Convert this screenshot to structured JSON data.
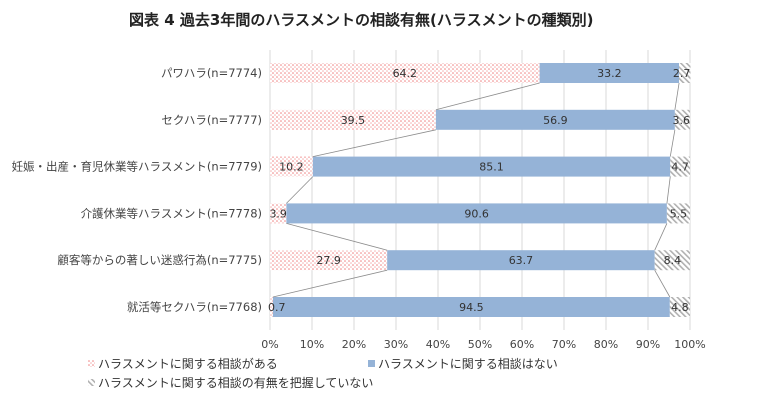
{
  "chart_data": {
    "type": "bar",
    "orientation": "horizontal",
    "stacked": "100%",
    "title": "図表 4  過去3年間のハラスメントの相談有無(ハラスメントの種類別)",
    "categories": [
      "パワハラ(n=7774)",
      "セクハラ(n=7777)",
      "妊娠・出産・育児休業等ハラスメント(n=7779)",
      "介護休業等ハラスメント(n=7778)",
      "顧客等からの著しい迷惑行為(n=7775)",
      "就活等セクハラ(n=7768)"
    ],
    "series": [
      {
        "name": "ハラスメントに関する相談がある",
        "values": [
          64.2,
          39.5,
          10.2,
          3.9,
          27.9,
          0.7
        ],
        "color": "#f4a6a6",
        "pattern": "dots"
      },
      {
        "name": "ハラスメントに関する相談はない",
        "values": [
          33.2,
          56.9,
          85.1,
          90.6,
          63.7,
          94.5
        ],
        "color": "#95b3d7",
        "pattern": "solid"
      },
      {
        "name": "ハラスメントに関する相談の有無を把握していない",
        "values": [
          2.7,
          3.6,
          4.7,
          5.5,
          8.4,
          4.8
        ],
        "color": "#bfbfbf",
        "pattern": "hatch"
      }
    ],
    "xlim": [
      0,
      100
    ],
    "xticks": [
      "0%",
      "10%",
      "20%",
      "30%",
      "40%",
      "50%",
      "60%",
      "70%",
      "80%",
      "90%",
      "100%"
    ],
    "grid": true,
    "series_lines": true,
    "legend_position": "bottom-left"
  }
}
